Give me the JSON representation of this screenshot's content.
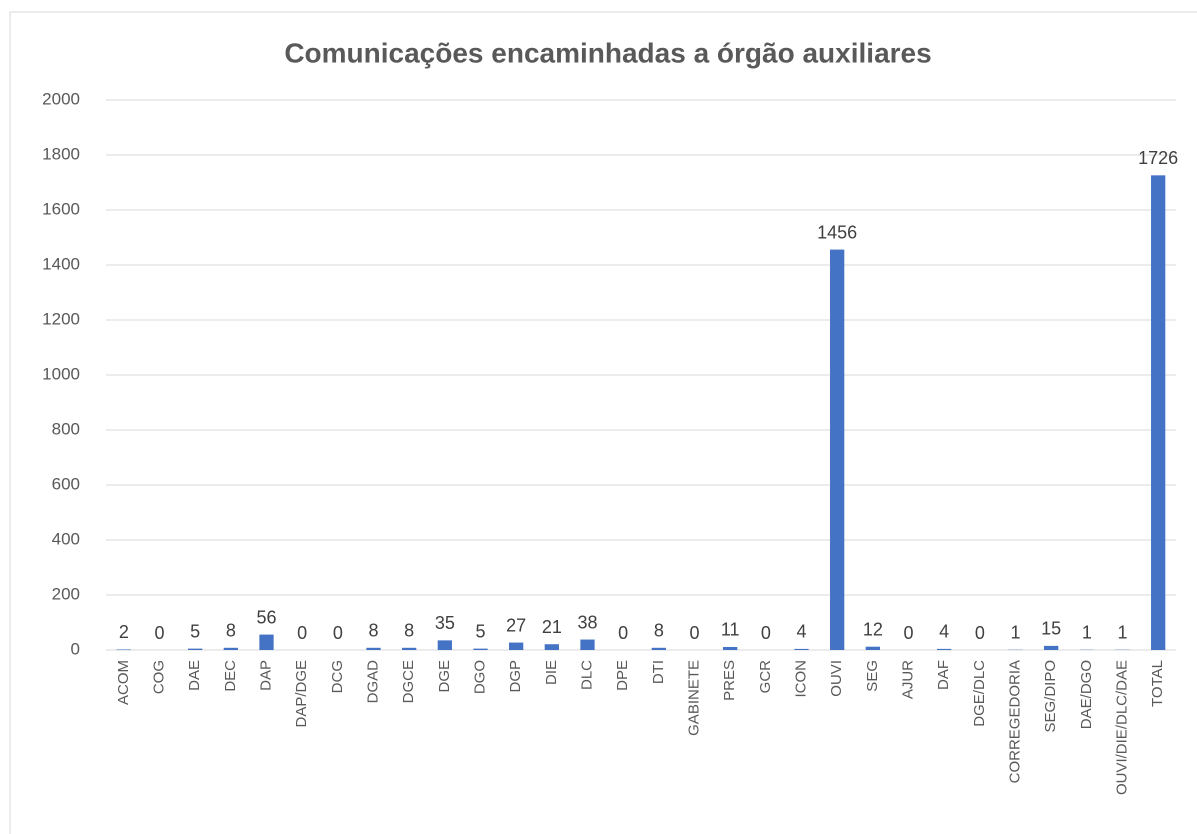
{
  "chart_data": {
    "type": "bar",
    "title": "Comunicações encaminhadas a órgão auxiliares",
    "categories": [
      "ACOM",
      "COG",
      "DAE",
      "DEC",
      "DAP",
      "DAP/DGE",
      "DCG",
      "DGAD",
      "DGCE",
      "DGE",
      "DGO",
      "DGP",
      "DIE",
      "DLC",
      "DPE",
      "DTI",
      "GABINETE",
      "PRES",
      "GCR",
      "ICON",
      "OUVI",
      "SEG",
      "AJUR",
      "DAF",
      "DGE/DLC",
      "CORREGEDORIA",
      "SEG/DIPO",
      "DAE/DGO",
      "OUVI/DIE/DLC/DAE",
      "TOTAL"
    ],
    "values": [
      2,
      0,
      5,
      8,
      56,
      0,
      0,
      8,
      8,
      35,
      5,
      27,
      21,
      38,
      0,
      8,
      0,
      11,
      0,
      4,
      1456,
      12,
      0,
      4,
      0,
      1,
      15,
      1,
      1,
      1726
    ],
    "color": "#4472c4",
    "ylim": [
      0,
      2000
    ],
    "yticks": [
      0,
      200,
      400,
      600,
      800,
      1000,
      1200,
      1400,
      1600,
      1800,
      2000
    ],
    "grid": true
  }
}
